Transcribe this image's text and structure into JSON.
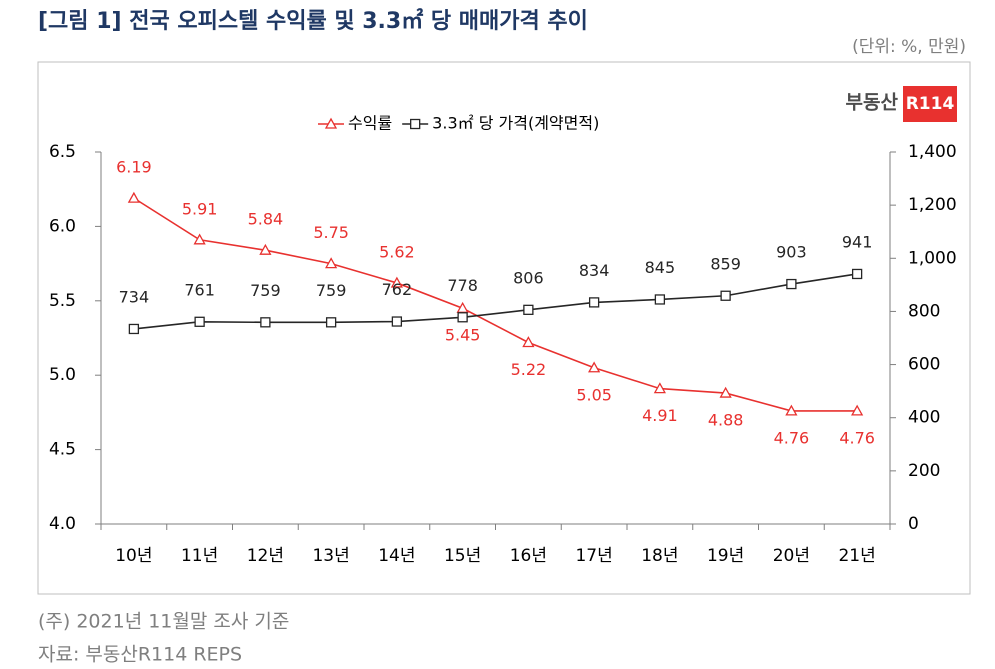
{
  "chart_data": {
    "type": "line",
    "title": "[그림 1] 전국 오피스텔 수익률 및 3.3㎡ 당 매매가격 추이",
    "subtitle": "(단위: %, 만원)",
    "logo": {
      "text": "부동산",
      "badge": "R114"
    },
    "categories": [
      "10년",
      "11년",
      "12년",
      "13년",
      "14년",
      "15년",
      "16년",
      "17년",
      "18년",
      "19년",
      "20년",
      "21년"
    ],
    "series": [
      {
        "name": "수익률",
        "color": "#e8312f",
        "marker": "triangle",
        "values": [
          6.19,
          5.91,
          5.84,
          5.75,
          5.62,
          5.45,
          5.22,
          5.05,
          4.91,
          4.88,
          4.76,
          4.76
        ]
      },
      {
        "name": "3.3㎡ 당 가격(계약면적)",
        "color": "#262626",
        "marker": "square",
        "axis": "y2",
        "values": [
          734,
          761,
          759,
          759,
          762,
          778,
          806,
          834,
          845,
          859,
          903,
          941
        ]
      }
    ],
    "ylim": [
      4,
      6.5
    ],
    "yticks": [
      {
        "value": 4,
        "label": "4.0"
      },
      4.5,
      {
        "value": 5,
        "label": "5.0"
      },
      5.5,
      {
        "value": 6,
        "label": "6.0"
      },
      6.5
    ],
    "y2lim": [
      0,
      1400
    ],
    "y2ticks": [
      0,
      200,
      400,
      600,
      800,
      {
        "value": 1000,
        "label": "1,000"
      },
      {
        "value": 1200,
        "label": "1,200"
      },
      {
        "value": 1400,
        "label": "1,400"
      }
    ],
    "grid": false,
    "legend": "top",
    "notes": [
      "(주) 2021년 11월말 조사 기준",
      "자료: 부동산R114 REPS"
    ]
  }
}
